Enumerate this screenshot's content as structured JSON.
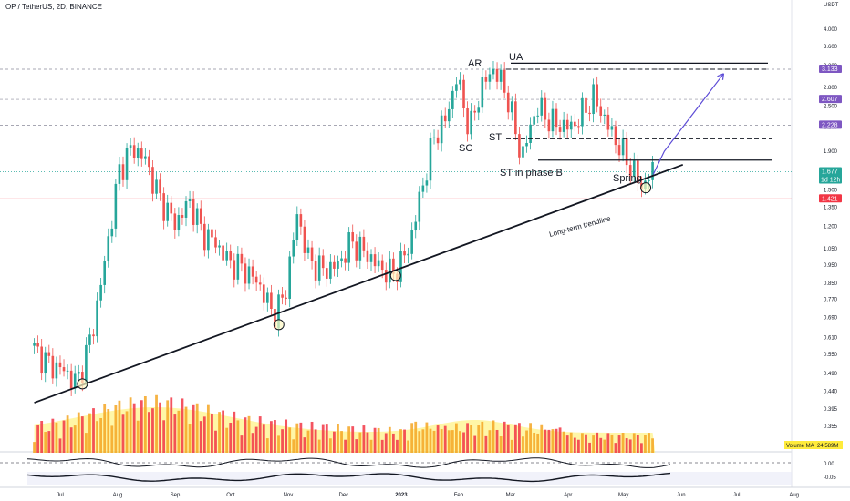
{
  "header": {
    "symbol_line": "OP / TetherUS, 2D, BINANCE",
    "currency": "USDT"
  },
  "chart_data": {
    "type": "candlestick",
    "title": "OP / TetherUS, 2D, BINANCE",
    "y_scale": "log",
    "ylim": [
      0.35,
      4.2
    ],
    "y_ticks": [
      "4.000",
      "3.600",
      "3.200",
      "2.800",
      "2.500",
      "2.200",
      "1.900",
      "1.700",
      "1.500",
      "1.350",
      "1.200",
      "1.050",
      "0.950",
      "0.850",
      "0.770",
      "0.690",
      "0.610",
      "0.550",
      "0.490",
      "0.440",
      "0.395",
      "0.355"
    ],
    "x_ticks": [
      "Jul",
      "Aug",
      "Sep",
      "Oct",
      "Nov",
      "Dec",
      "2023",
      "Feb",
      "Mar",
      "Apr",
      "May",
      "Jun",
      "Jul",
      "Aug"
    ],
    "x_tick_dates": [
      "2022-07-01",
      "2022-08-01",
      "2022-09-01",
      "2022-10-01",
      "2022-11-01",
      "2022-12-01",
      "2023-01-01",
      "2023-02-01",
      "2023-03-01",
      "2023-04-01",
      "2023-05-01",
      "2023-06-01",
      "2023-07-01",
      "2023-08-01"
    ],
    "price_labels": [
      {
        "value": "3.133",
        "color": "#7e57c2"
      },
      {
        "value": "2.607",
        "color": "#7e57c2"
      },
      {
        "value": "2.228",
        "color": "#7e57c2"
      },
      {
        "value": "1.677",
        "sub": "1d 12h",
        "color": "#26a69a"
      },
      {
        "value": "1.421",
        "color": "#f23645"
      }
    ],
    "price_path": [
      {
        "date": "2022-06-17",
        "price": 0.58
      },
      {
        "date": "2022-06-27",
        "price": 0.52
      },
      {
        "date": "2022-07-05",
        "price": 0.5
      },
      {
        "date": "2022-07-12",
        "price": 0.46
      },
      {
        "date": "2022-07-20",
        "price": 0.62
      },
      {
        "date": "2022-07-26",
        "price": 0.9
      },
      {
        "date": "2022-08-04",
        "price": 1.7
      },
      {
        "date": "2022-08-11",
        "price": 1.95
      },
      {
        "date": "2022-08-18",
        "price": 1.8
      },
      {
        "date": "2022-08-25",
        "price": 1.45
      },
      {
        "date": "2022-09-03",
        "price": 1.22
      },
      {
        "date": "2022-09-11",
        "price": 1.4
      },
      {
        "date": "2022-09-18",
        "price": 1.15
      },
      {
        "date": "2022-09-24",
        "price": 1.1
      },
      {
        "date": "2022-10-02",
        "price": 0.97
      },
      {
        "date": "2022-10-10",
        "price": 0.93
      },
      {
        "date": "2022-10-18",
        "price": 0.85
      },
      {
        "date": "2022-10-26",
        "price": 0.7
      },
      {
        "date": "2022-11-01",
        "price": 0.78
      },
      {
        "date": "2022-11-08",
        "price": 1.3
      },
      {
        "date": "2022-11-14",
        "price": 0.98
      },
      {
        "date": "2022-11-22",
        "price": 0.92
      },
      {
        "date": "2022-11-30",
        "price": 0.95
      },
      {
        "date": "2022-12-07",
        "price": 1.1
      },
      {
        "date": "2022-12-15",
        "price": 1.02
      },
      {
        "date": "2022-12-23",
        "price": 0.93
      },
      {
        "date": "2022-12-30",
        "price": 0.9
      },
      {
        "date": "2023-01-07",
        "price": 1.05
      },
      {
        "date": "2023-01-14",
        "price": 1.5
      },
      {
        "date": "2023-01-21",
        "price": 2.1
      },
      {
        "date": "2023-01-27",
        "price": 2.3
      },
      {
        "date": "2023-02-02",
        "price": 3.0
      },
      {
        "date": "2023-02-09",
        "price": 2.15
      },
      {
        "date": "2023-02-15",
        "price": 2.8
      },
      {
        "date": "2023-02-22",
        "price": 3.15
      },
      {
        "date": "2023-03-01",
        "price": 2.7
      },
      {
        "date": "2023-03-09",
        "price": 1.82
      },
      {
        "date": "2023-03-17",
        "price": 2.5
      },
      {
        "date": "2023-03-26",
        "price": 2.25
      },
      {
        "date": "2023-04-05",
        "price": 2.2
      },
      {
        "date": "2023-04-17",
        "price": 2.65
      },
      {
        "date": "2023-04-27",
        "price": 2.1
      },
      {
        "date": "2023-05-05",
        "price": 1.8
      },
      {
        "date": "2023-05-13",
        "price": 1.52
      },
      {
        "date": "2023-05-18",
        "price": 1.677
      }
    ],
    "volume_ma_label": "Volume MA",
    "volume_ma_value": "24.589M",
    "oscillator_ticks": [
      "0.00",
      "-0.05"
    ],
    "annotations": [
      "AR",
      "UA",
      "ST",
      "SC",
      "ST in phase B",
      "Spring",
      "Long-term trendline"
    ],
    "trendline": [
      {
        "date": "2022-06-17",
        "price": 0.41
      },
      {
        "date": "2023-06-02",
        "price": 1.75
      }
    ],
    "horizontal_levels": [
      3.133,
      3.25,
      2.607,
      2.228,
      2.05,
      1.8,
      1.677,
      1.421
    ],
    "touch_points": [
      {
        "date": "2022-07-13",
        "price": 0.46
      },
      {
        "date": "2022-10-27",
        "price": 0.66
      },
      {
        "date": "2022-12-29",
        "price": 0.89
      },
      {
        "date": "2023-05-13",
        "price": 1.52
      }
    ],
    "projection_arrow": [
      {
        "date": "2023-05-17",
        "price": 1.65
      },
      {
        "date": "2023-05-23",
        "price": 1.9
      },
      {
        "date": "2023-06-24",
        "price": 3.05
      }
    ],
    "legend": "none",
    "grid": false
  }
}
